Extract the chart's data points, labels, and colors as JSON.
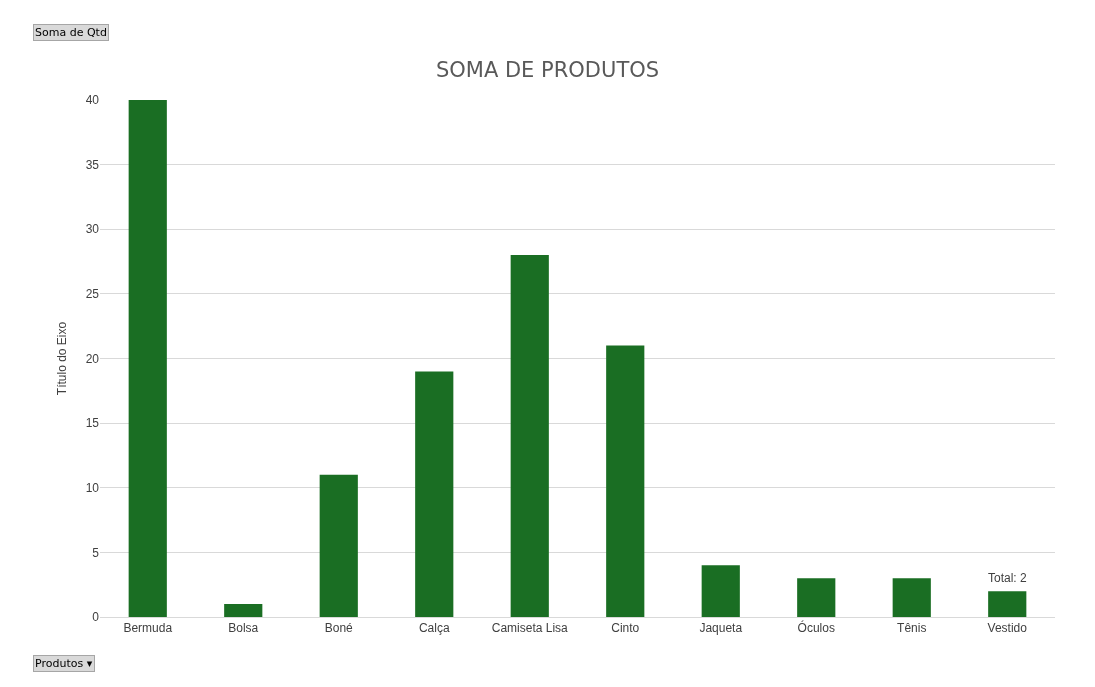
{
  "chart_data": {
    "type": "bar",
    "title": "SOMA DE PRODUTOS",
    "ylabel": "Título do Eixo",
    "categories": [
      "Bermuda",
      "Bolsa",
      "Boné",
      "Calça",
      "Camiseta Lisa",
      "Cinto",
      "Jaqueta",
      "Óculos",
      "Tênis",
      "Vestido"
    ],
    "values": [
      40,
      1,
      11,
      19,
      28,
      21,
      4,
      3,
      3,
      2
    ],
    "color": "#1a6e23",
    "ylim": [
      0,
      40
    ],
    "yticks": [
      0,
      5,
      10,
      15,
      20,
      25,
      30,
      35,
      40
    ],
    "grid": "y",
    "annotations": [
      "Soma de Qtd",
      "Produtos ▾",
      {
        "text": "Total: 2",
        "x": "Vestido",
        "y": 2
      }
    ]
  }
}
